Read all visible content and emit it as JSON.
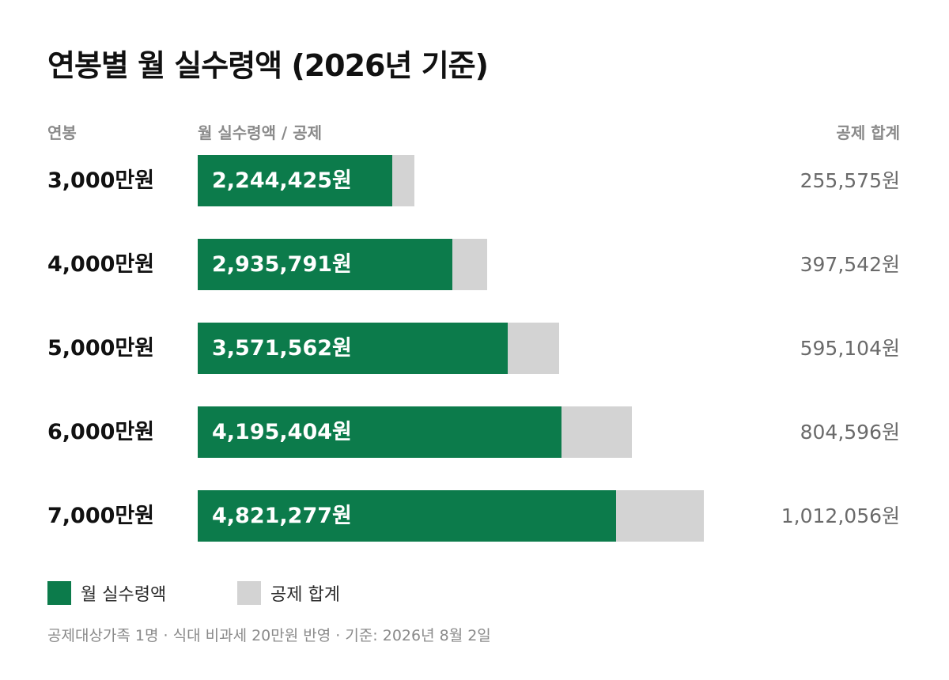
{
  "title": "연봉별 월 실수령액 (2026년 기준)",
  "headers": {
    "salary": "연봉",
    "bar": "월 실수령액 / 공제",
    "deduction": "공제 합계"
  },
  "colors": {
    "net": "#0c7b4b",
    "deduction": "#d3d3d3"
  },
  "legend": [
    {
      "label": "월 실수령액",
      "color": "#0c7b4b"
    },
    {
      "label": "공제 합계",
      "color": "#d3d3d3"
    }
  ],
  "footnote": "공제대상가족 1명 · 식대 비과세 20만원 반영 · 기준: 2026년 8월 2일",
  "chart_data": {
    "type": "bar",
    "orientation": "horizontal",
    "stacked": true,
    "categories": [
      "3,000만원",
      "4,000만원",
      "5,000만원",
      "6,000만원",
      "7,000만원"
    ],
    "series": [
      {
        "name": "월 실수령액",
        "values": [
          2244425,
          2935791,
          3571562,
          4195404,
          4821277
        ]
      },
      {
        "name": "공제 합계",
        "values": [
          255575,
          397542,
          595104,
          804596,
          1012056
        ]
      }
    ],
    "value_labels": {
      "net": [
        "2,244,425원",
        "2,935,791원",
        "3,571,562원",
        "4,195,404원",
        "4,821,277원"
      ],
      "deduction": [
        "255,575원",
        "397,542원",
        "595,104원",
        "804,596원",
        "1,012,056원"
      ]
    }
  }
}
